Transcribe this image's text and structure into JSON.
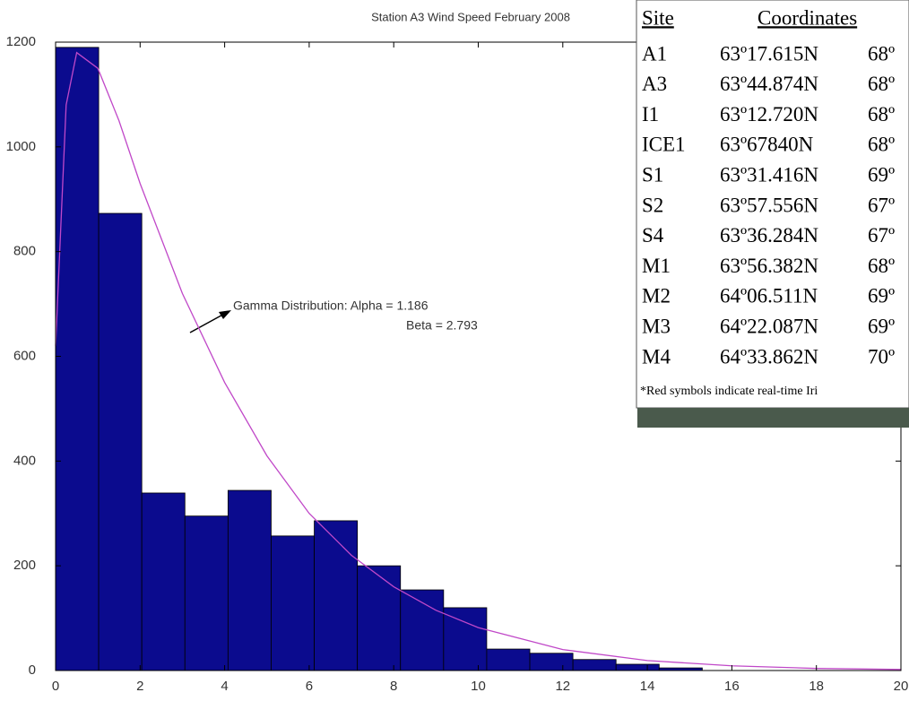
{
  "chart_data": {
    "type": "histogram",
    "title": "Station A3 Wind Speed February 2008",
    "bins": [
      0,
      1.02,
      2.04,
      3.06,
      4.08,
      5.1,
      6.12,
      7.14,
      8.16,
      9.18,
      10.2,
      11.22,
      12.24,
      13.26,
      14.28,
      15.3
    ],
    "values": [
      1190,
      873,
      339,
      295,
      344,
      257,
      286,
      200,
      154,
      120,
      41,
      33,
      21,
      12,
      5
    ],
    "color": "#0b0b8e",
    "curve": {
      "color": "#c048c8",
      "x": [
        0,
        0.25,
        0.5,
        1,
        1.5,
        2,
        3,
        4,
        5,
        6,
        7,
        8,
        9,
        10,
        12,
        14,
        16,
        18,
        20
      ],
      "values": [
        620,
        1080,
        1180,
        1150,
        1050,
        930,
        720,
        550,
        410,
        300,
        220,
        160,
        115,
        82,
        40,
        19,
        9,
        4,
        2
      ]
    },
    "annotations": [
      "Gamma Distribution: Alpha = 1.186",
      "Beta = 2.793"
    ],
    "xlim": [
      0,
      20
    ],
    "ylim": [
      0,
      1200
    ],
    "xticks": [
      0,
      2,
      4,
      6,
      8,
      10,
      12,
      14,
      16,
      18,
      20
    ],
    "yticks": [
      0,
      200,
      400,
      600,
      800,
      1000,
      1200
    ]
  },
  "table": {
    "header": [
      "Site",
      "Coordinates"
    ],
    "rows": [
      [
        "A1",
        "63º17.615N",
        "68º"
      ],
      [
        "A3",
        "63º44.874N",
        "68º"
      ],
      [
        "I1",
        "63º12.720N",
        "68º"
      ],
      [
        "ICE1",
        "63º67840N",
        "68º"
      ],
      [
        "S1",
        "63º31.416N",
        "69º"
      ],
      [
        "S2",
        "63º57.556N",
        "67º"
      ],
      [
        "S4",
        "63º36.284N",
        "67º"
      ],
      [
        "M1",
        "63º56.382N",
        "68º"
      ],
      [
        "M2",
        "64º06.511N",
        "69º"
      ],
      [
        "M3",
        "64º22.087N",
        "69º"
      ],
      [
        "M4",
        "64º33.862N",
        "70º"
      ]
    ],
    "note": "*Red symbols indicate real-time Iri"
  }
}
